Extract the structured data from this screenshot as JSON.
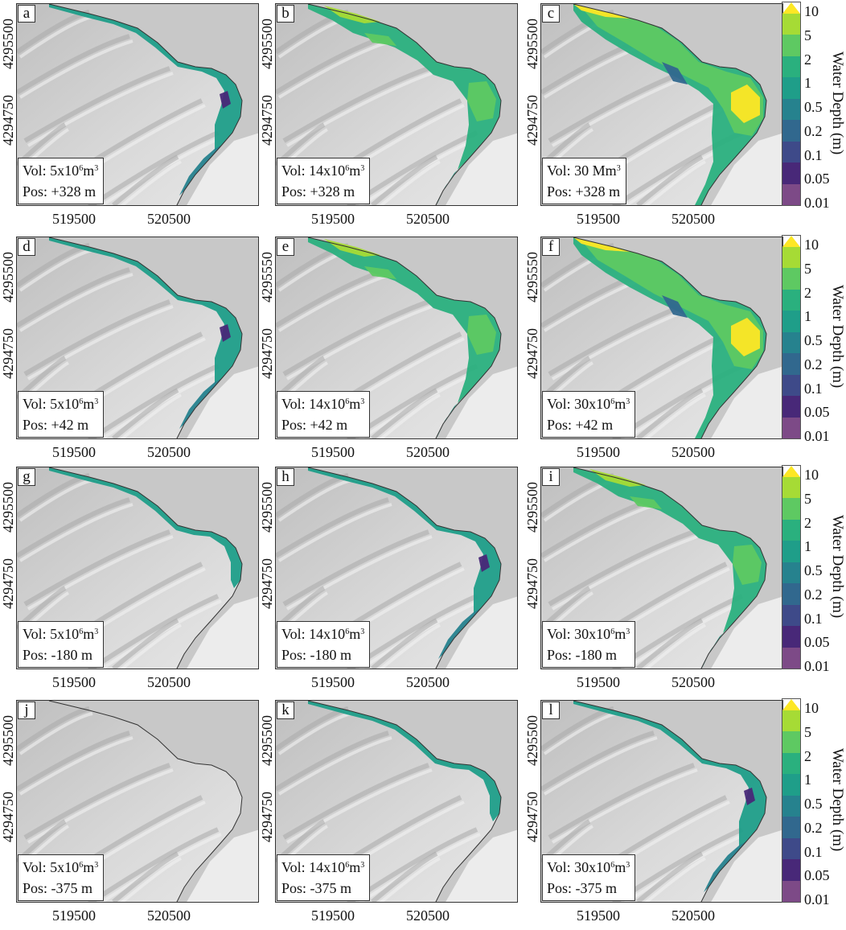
{
  "panels": [
    {
      "letter": "a",
      "vol_prefix": "Vol: 5x10",
      "vol_exp": "6",
      "vol_unit": "m",
      "vol_unit_exp": "3",
      "pos": "Pos: +328 m",
      "yticks": [
        "4295500",
        "4294750"
      ],
      "xticks": [
        "519500",
        "520500"
      ],
      "flood": "small"
    },
    {
      "letter": "b",
      "vol_prefix": "Vol: 14x10",
      "vol_exp": "6",
      "vol_unit": "m",
      "vol_unit_exp": "3",
      "pos": "Pos: +328 m",
      "yticks": [
        "4295500",
        "4294750"
      ],
      "xticks": [
        "519500",
        "520500"
      ],
      "flood": "medium"
    },
    {
      "letter": "c",
      "vol_prefix": "Vol: 30 Mm",
      "vol_exp": "3",
      "vol_unit": "",
      "vol_unit_exp": "",
      "pos": "Pos: +328 m",
      "yticks": [
        "4295500",
        "4294750"
      ],
      "xticks": [
        "519500",
        "520500"
      ],
      "flood": "large"
    },
    {
      "letter": "d",
      "vol_prefix": "Vol: 5x10",
      "vol_exp": "6",
      "vol_unit": "m",
      "vol_unit_exp": "3",
      "pos": "Pos: +42 m",
      "yticks": [
        "4295500",
        "4294750"
      ],
      "xticks": [
        "519500",
        "520500"
      ],
      "flood": "small"
    },
    {
      "letter": "e",
      "vol_prefix": "Vol: 14x10",
      "vol_exp": "6",
      "vol_unit": "m",
      "vol_unit_exp": "3",
      "pos": "Pos: +42 m",
      "yticks": [
        "4295550",
        "4294750"
      ],
      "xticks": [
        "519500",
        "520500"
      ],
      "flood": "medium"
    },
    {
      "letter": "f",
      "vol_prefix": "Vol: 30x10",
      "vol_exp": "6",
      "vol_unit": "m",
      "vol_unit_exp": "3",
      "pos": "Pos: +42 m",
      "yticks": [
        "4295550",
        "4294750"
      ],
      "xticks": [
        "519500",
        "520500"
      ],
      "flood": "large"
    },
    {
      "letter": "g",
      "vol_prefix": "Vol: 5x10",
      "vol_exp": "6",
      "vol_unit": "m",
      "vol_unit_exp": "3",
      "pos": "Pos: -180 m",
      "yticks": [
        "4295500",
        "4294750"
      ],
      "xticks": [
        "519500",
        "520500"
      ],
      "flood": "tiny"
    },
    {
      "letter": "h",
      "vol_prefix": "Vol: 14x10",
      "vol_exp": "6",
      "vol_unit": "m",
      "vol_unit_exp": "3",
      "pos": "Pos: -180 m",
      "yticks": [
        "4295500",
        "4294750"
      ],
      "xticks": [
        "519500",
        "520500"
      ],
      "flood": "small"
    },
    {
      "letter": "i",
      "vol_prefix": "Vol: 30x10",
      "vol_exp": "6",
      "vol_unit": "m",
      "vol_unit_exp": "3",
      "pos": "Pos: -180 m",
      "yticks": [
        "4295500",
        "4294750"
      ],
      "xticks": [
        "519500",
        "520500"
      ],
      "flood": "medium"
    },
    {
      "letter": "j",
      "vol_prefix": "Vol: 5x10",
      "vol_exp": "6",
      "vol_unit": "m",
      "vol_unit_exp": "3",
      "pos": "Pos: -375 m",
      "yticks": [
        "4295500",
        "4294750"
      ],
      "xticks": [
        "519500",
        "520500"
      ],
      "flood": "none"
    },
    {
      "letter": "k",
      "vol_prefix": "Vol: 14x10",
      "vol_exp": "6",
      "vol_unit": "m",
      "vol_unit_exp": "3",
      "pos": "Pos: -375 m",
      "yticks": [
        "4295500",
        "4294750"
      ],
      "xticks": [
        "519500",
        "520500"
      ],
      "flood": "tiny"
    },
    {
      "letter": "l",
      "vol_prefix": "Vol: 30x10",
      "vol_exp": "6",
      "vol_unit": "m",
      "vol_unit_exp": "3",
      "pos": "Pos: -375 m",
      "yticks": [
        "4295500",
        "4294750"
      ],
      "xticks": [
        "519500",
        "520500"
      ],
      "flood": "small"
    }
  ],
  "colorbar": {
    "title": "Water Depth (m)",
    "ticks": [
      "10",
      "5",
      "2",
      "1",
      "0.5",
      "0.2",
      "0.1",
      "0.05",
      "0.01"
    ],
    "colors": [
      "#a6db35",
      "#5ec962",
      "#2ab07e",
      "#1f9e89",
      "#26828e",
      "#31688e",
      "#3e4a89",
      "#482878",
      "#7d4a87"
    ],
    "extend_color": "#fde725"
  }
}
